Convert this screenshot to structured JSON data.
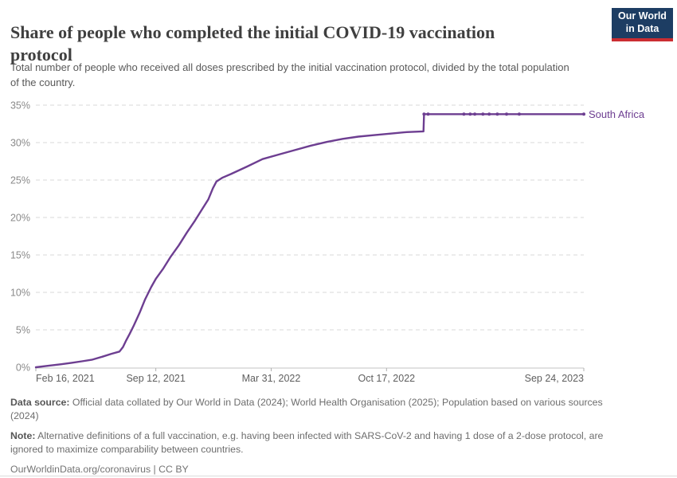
{
  "header": {
    "title": "Share of people who completed the initial COVID-19 vaccination\nprotocol",
    "subtitle": "Total number of people who received all doses prescribed by the initial vaccination protocol, divided by the total population\nof the country.",
    "logo": {
      "line1": "Our World",
      "line2": "in Data"
    }
  },
  "chart_data": {
    "type": "line",
    "title": "Share of people who completed the initial COVID-19 vaccination protocol",
    "entity": "South Africa",
    "x_axis": {
      "range": [
        "2021-02-16",
        "2023-09-24"
      ],
      "ticks": [
        {
          "date": "2021-02-16",
          "label": "Feb 16, 2021"
        },
        {
          "date": "2021-09-12",
          "label": "Sep 12, 2021"
        },
        {
          "date": "2022-03-31",
          "label": "Mar 31, 2022"
        },
        {
          "date": "2022-10-17",
          "label": "Oct 17, 2022"
        },
        {
          "date": "2023-09-24",
          "label": "Sep 24, 2023"
        }
      ]
    },
    "y_axis": {
      "range": [
        0,
        35
      ],
      "unit": "%",
      "ticks": [
        "0%",
        "5%",
        "10%",
        "15%",
        "20%",
        "25%",
        "30%",
        "35%"
      ],
      "grid": "dashed"
    },
    "series": [
      {
        "name": "South Africa",
        "color": "#6d3e91",
        "points": [
          [
            "2021-02-16",
            0.0
          ],
          [
            "2021-03-10",
            0.2
          ],
          [
            "2021-04-01",
            0.4
          ],
          [
            "2021-04-19",
            0.6
          ],
          [
            "2021-05-07",
            0.8
          ],
          [
            "2021-05-24",
            1.0
          ],
          [
            "2021-06-11",
            1.4
          ],
          [
            "2021-06-27",
            1.8
          ],
          [
            "2021-07-11",
            2.1
          ],
          [
            "2021-07-17",
            2.7
          ],
          [
            "2021-07-22",
            3.5
          ],
          [
            "2021-07-29",
            4.5
          ],
          [
            "2021-08-05",
            5.6
          ],
          [
            "2021-08-15",
            7.3
          ],
          [
            "2021-08-24",
            9.0
          ],
          [
            "2021-09-04",
            10.7
          ],
          [
            "2021-09-12",
            11.8
          ],
          [
            "2021-09-25",
            13.2
          ],
          [
            "2021-10-08",
            14.8
          ],
          [
            "2021-10-22",
            16.3
          ],
          [
            "2021-11-05",
            18.0
          ],
          [
            "2021-11-19",
            19.6
          ],
          [
            "2021-12-02",
            21.2
          ],
          [
            "2021-12-12",
            22.4
          ],
          [
            "2021-12-20",
            23.9
          ],
          [
            "2021-12-26",
            24.8
          ],
          [
            "2022-01-05",
            25.3
          ],
          [
            "2022-01-20",
            25.8
          ],
          [
            "2022-02-17",
            26.8
          ],
          [
            "2022-03-16",
            27.8
          ],
          [
            "2022-04-13",
            28.4
          ],
          [
            "2022-05-11",
            29.0
          ],
          [
            "2022-06-08",
            29.6
          ],
          [
            "2022-07-06",
            30.1
          ],
          [
            "2022-08-02",
            30.5
          ],
          [
            "2022-08-29",
            30.8
          ],
          [
            "2022-09-26",
            31.0
          ],
          [
            "2022-10-24",
            31.2
          ],
          [
            "2022-11-21",
            31.4
          ],
          [
            "2022-12-20",
            31.5
          ],
          [
            "2022-12-21",
            33.8
          ],
          [
            "2022-12-28",
            33.8
          ],
          [
            "2023-02-28",
            33.8
          ],
          [
            "2023-03-11",
            33.8
          ],
          [
            "2023-03-19",
            33.8
          ],
          [
            "2023-04-02",
            33.8
          ],
          [
            "2023-04-13",
            33.8
          ],
          [
            "2023-04-27",
            33.8
          ],
          [
            "2023-05-13",
            33.8
          ],
          [
            "2023-06-04",
            33.8
          ],
          [
            "2023-09-24",
            33.8
          ]
        ],
        "markers": [
          [
            "2022-12-21",
            33.8
          ],
          [
            "2022-12-28",
            33.8
          ],
          [
            "2023-02-28",
            33.8
          ],
          [
            "2023-03-11",
            33.8
          ],
          [
            "2023-03-19",
            33.8
          ],
          [
            "2023-04-02",
            33.8
          ],
          [
            "2023-04-13",
            33.8
          ],
          [
            "2023-04-27",
            33.8
          ],
          [
            "2023-05-13",
            33.8
          ],
          [
            "2023-06-04",
            33.8
          ],
          [
            "2023-09-24",
            33.8
          ]
        ]
      }
    ]
  },
  "footer": {
    "data_source_label": "Data source:",
    "data_source_text": " Official data collated by Our World in Data (2024); World Health Organisation (2025); Population based on various sources\n(2024)",
    "note_label": "Note:",
    "note_text": " Alternative definitions of a full vaccination, e.g. having been infected with SARS-CoV-2 and having 1 dose of a 2-dose protocol, are\nignored to maximize comparability between countries.",
    "url_text": "OurWorldinData.org/coronavirus",
    "separator": " | ",
    "license_text": "CC BY"
  },
  "colors": {
    "line": "#6d3e91",
    "logo_bg": "#1d3d63",
    "logo_bar": "#cb2d32",
    "gridline": "#d9d9d9"
  }
}
